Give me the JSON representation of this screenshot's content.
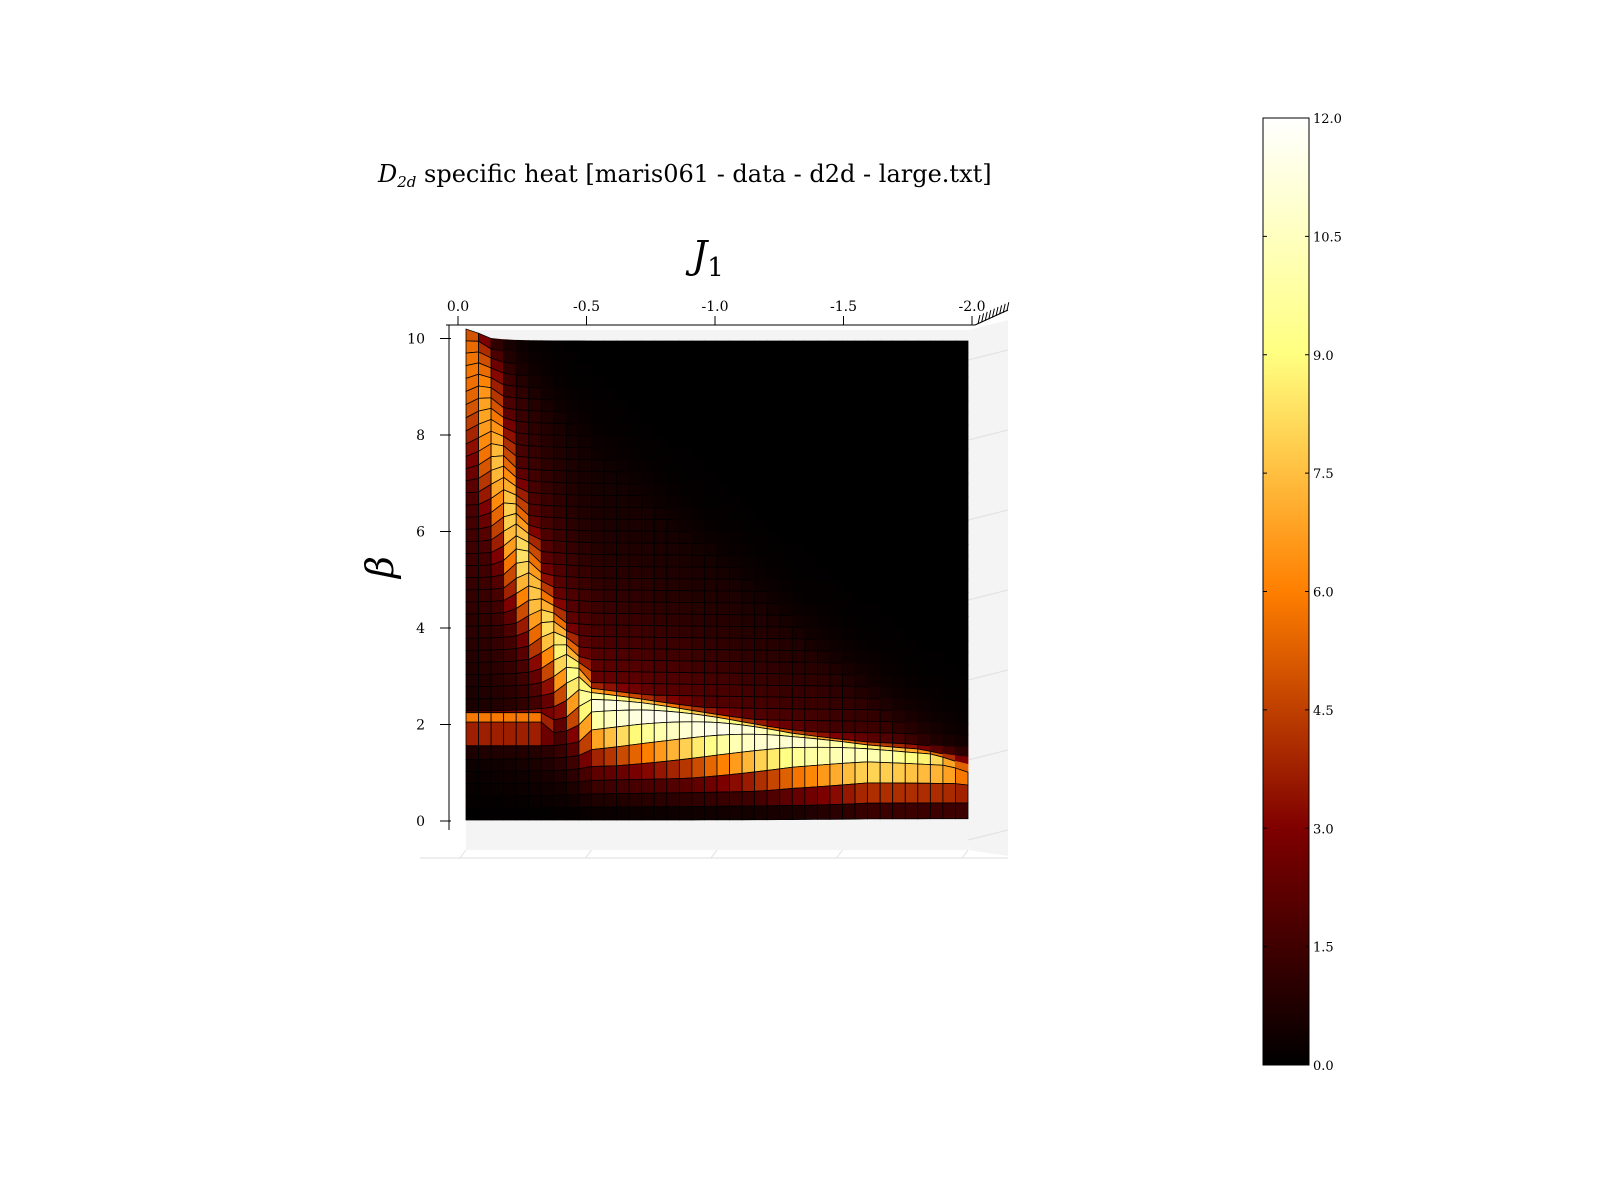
{
  "chart_data": {
    "type": "heatmap",
    "title_main": "D",
    "title_sub": "2d",
    "title_rest": " specific heat [maris061 - data - d2d - large.txt]",
    "xlabel_main": "J",
    "xlabel_sub": "1",
    "ylabel": "β",
    "x_ticks": [
      "0.0",
      "-0.5",
      "-1.0",
      "-1.5",
      "-2.0"
    ],
    "y_ticks": [
      "0",
      "2",
      "4",
      "6",
      "8",
      "10"
    ],
    "colorbar_ticks": [
      "0.0",
      "1.5",
      "3.0",
      "4.5",
      "6.0",
      "7.5",
      "9.0",
      "10.5",
      "12.0"
    ],
    "colormap": "afmhot",
    "xlim": [
      0.0,
      -2.0
    ],
    "ylim": [
      0,
      10
    ],
    "zlim": [
      0.0,
      12.0
    ],
    "grid_cols": 40,
    "grid_rows": 40,
    "ridge": {
      "description_points_J1": [
        0.0,
        -0.1,
        -0.2,
        -0.3,
        -0.5,
        -0.7,
        -1.0,
        -1.3,
        -1.6,
        -2.0
      ],
      "beta_peak": [
        9.8,
        7.8,
        5.6,
        4.0,
        1.9,
        1.7,
        1.4,
        1.1,
        0.9,
        0.8
      ],
      "peak_value": [
        5.5,
        8.0,
        9.5,
        8.5,
        11.5,
        12.0,
        12.0,
        11.5,
        11.0,
        8.0
      ]
    }
  }
}
